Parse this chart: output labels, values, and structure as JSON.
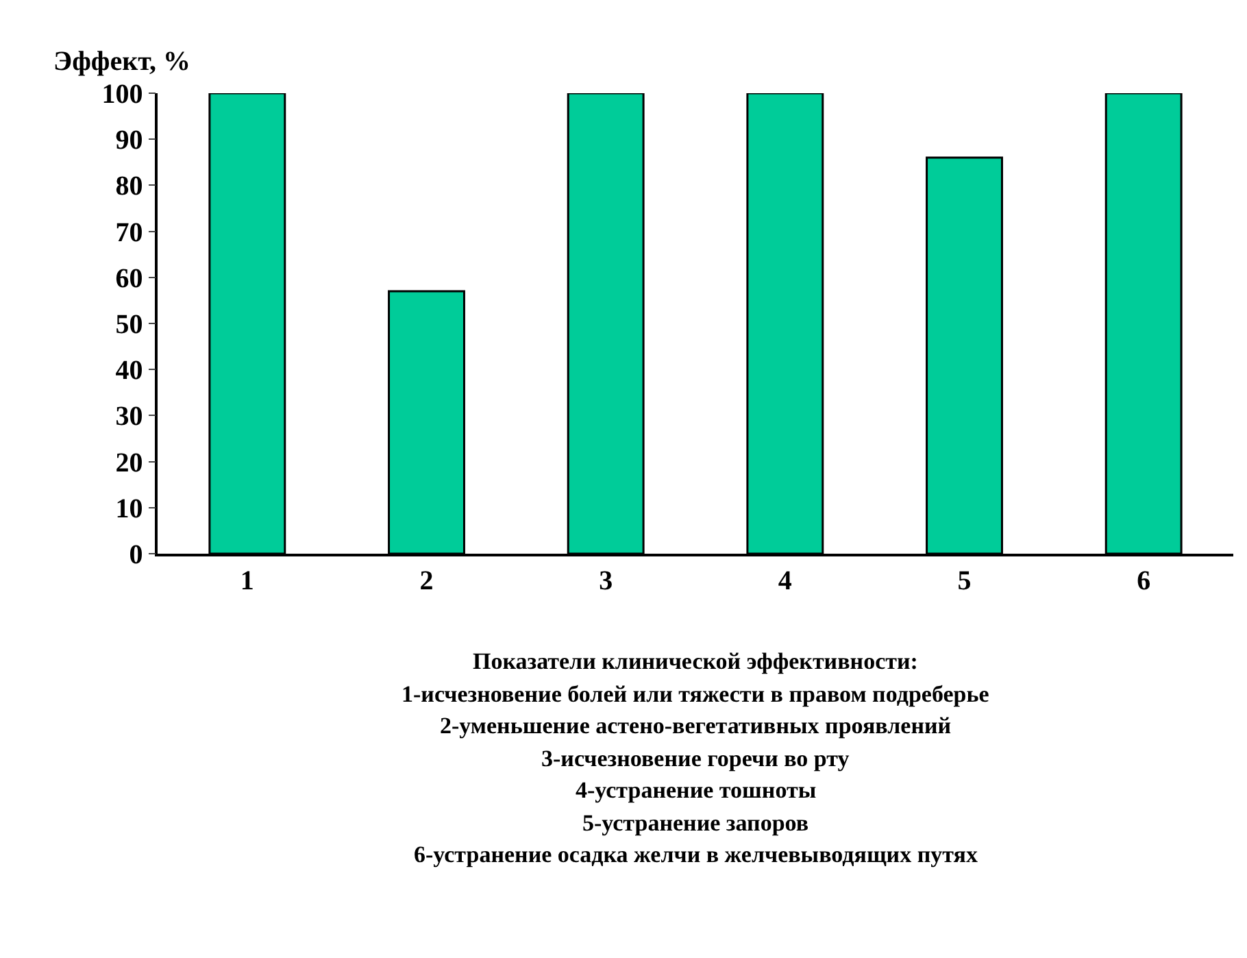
{
  "chart_data": {
    "type": "bar",
    "ylabel": "Эффект, %",
    "categories": [
      "1",
      "2",
      "3",
      "4",
      "5",
      "6"
    ],
    "values": [
      100,
      57,
      100,
      100,
      86,
      100
    ],
    "color": "#00cc99",
    "ylim": [
      0,
      100
    ],
    "yticks": [
      0,
      10,
      20,
      30,
      40,
      50,
      60,
      70,
      80,
      90,
      100
    ],
    "annotations": [
      "Показатели клинической эффективности:",
      "1-исчезновение болей или тяжести в правом подреберье",
      "2-уменьшение астено-вегетативных проявлений",
      "3-исчезновение горечи во рту",
      "4-устранение тошноты",
      "5-устранение запоров",
      "6-устранение осадка желчи в желчевыводящих путях"
    ]
  }
}
